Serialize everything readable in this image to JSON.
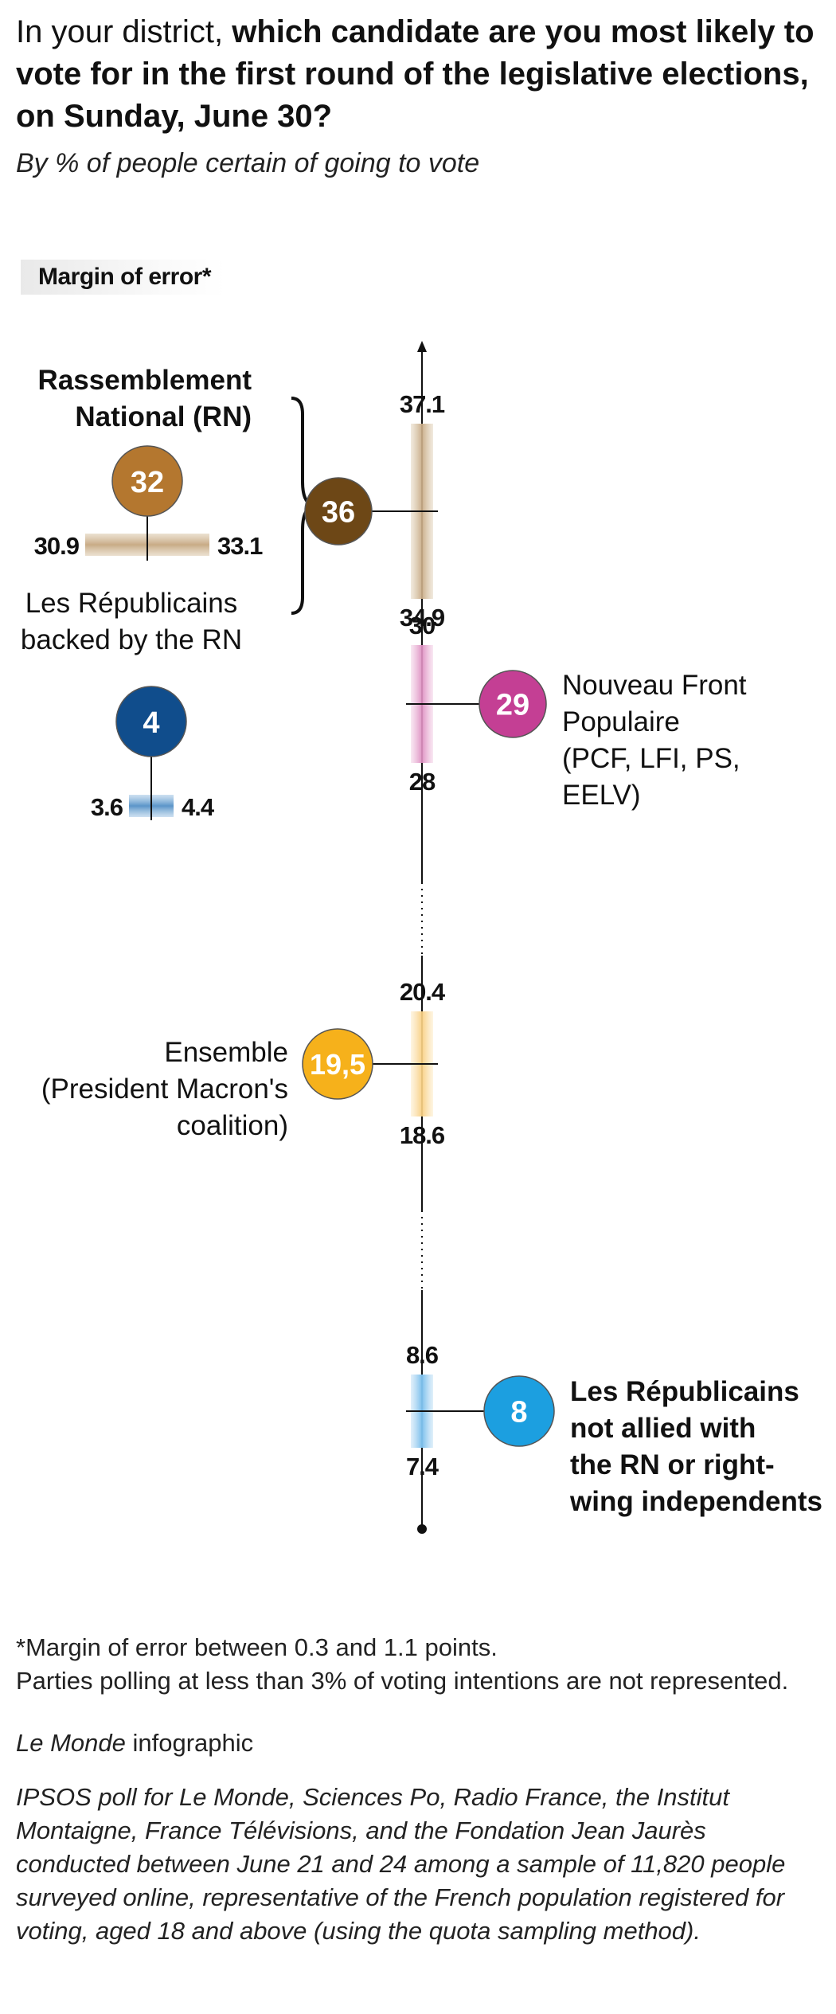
{
  "header": {
    "title_light": "In your district,",
    "title_bold": "which candidate are you most likely to vote for in the first round of the legislative elections, on Sunday, June 30?",
    "subtitle": "By % of people certain of going to vote"
  },
  "legend": {
    "margin_of_error_label": "Margin of error*"
  },
  "colors": {
    "rn_allies_dark": "#6d4716",
    "rn_light": "#b4772f",
    "nfp": "#c43f94",
    "ensemble": "#f6b11b",
    "lr_independent": "#1c9fe0",
    "lr_allied": "#104d8c"
  },
  "chart_data": {
    "type": "scatter",
    "title": "which candidate are you most likely to vote for in the first round of the legislative elections, on Sunday, June 30?",
    "subtitle": "By % of people certain of going to vote",
    "series": [
      {
        "name": "Rassemblement National (RN) + Les Républicains backed by the RN",
        "value": 36,
        "value_label": "36",
        "low": 34.9,
        "high": 37.1,
        "low_label": "34.9",
        "high_label": "37.1",
        "color": "#6d4716"
      },
      {
        "name": "Rassemblement National (RN)",
        "value": 32,
        "value_label": "32",
        "low": 30.9,
        "high": 33.1,
        "low_label": "30.9",
        "high_label": "33.1",
        "color": "#b4772f"
      },
      {
        "name": "Les Républicains backed by the RN",
        "value": 4,
        "value_label": "4",
        "low": 3.6,
        "high": 4.4,
        "low_label": "3.6",
        "high_label": "4.4",
        "color": "#104d8c"
      },
      {
        "name": "Nouveau Front Populaire (PCF, LFI, PS, EELV)",
        "value": 29,
        "value_label": "29",
        "low": 28,
        "high": 30,
        "low_label": "28",
        "high_label": "30",
        "color": "#c43f94"
      },
      {
        "name": "Ensemble (President Macron's coalition)",
        "value": 19.5,
        "value_label": "19,5",
        "low": 18.6,
        "high": 20.4,
        "low_label": "18.6",
        "high_label": "20.4",
        "color": "#f6b11b"
      },
      {
        "name": "Les Républicains not allied with the RN or right-wing independents",
        "value": 8,
        "value_label": "8",
        "low": 7.4,
        "high": 8.6,
        "low_label": "7.4",
        "high_label": "8.6",
        "color": "#1c9fe0"
      }
    ]
  },
  "labels": {
    "rn_line1": "Rassemblement",
    "rn_line2": "National (RN)",
    "lr_rn_line1": "Les Républicains",
    "lr_rn_line2": "backed by the RN",
    "nfp_line1": "Nouveau Front",
    "nfp_line2": "Populaire",
    "nfp_line3": "(PCF, LFI, PS,",
    "nfp_line4": "EELV)",
    "ens_line1": "Ensemble",
    "ens_line2": "(President Macron's",
    "ens_line3": "coalition)",
    "lr_line1": "Les Républicains",
    "lr_line2": "not allied with",
    "lr_line3": "the RN or right-",
    "lr_line4": "wing independents"
  },
  "footer": {
    "note1": "*Margin of error between 0.3 and 1.1 points.",
    "note2": "Parties polling at less than 3% of voting intentions are not represented.",
    "credit_italic": "Le Monde",
    "credit_rest": " infographic",
    "source": "IPSOS poll for Le Monde, Sciences Po, Radio France, the Institut Montaigne, France Télévisions, and the Fondation Jean Jaurès conducted between June 21 and 24 among a sample of 11,820 people surveyed online, representative of the French population registered for voting, aged 18 and above (using the quota sampling method)."
  }
}
